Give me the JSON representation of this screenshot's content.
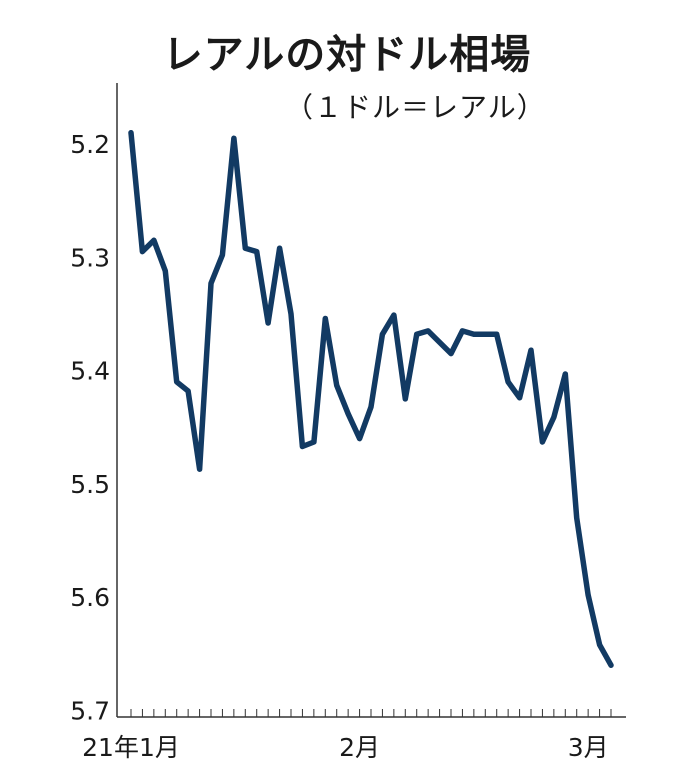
{
  "chart_data": {
    "type": "line",
    "title": "レアルの対ドル相場",
    "subtitle": "（１ドル＝レアル）",
    "xlabel": "",
    "ylabel": "",
    "y_inverted": true,
    "ylim": [
      5.15,
      5.7
    ],
    "yticks": [
      5.2,
      5.3,
      5.4,
      5.5,
      5.6,
      5.7
    ],
    "ytick_labels": [
      "5.2",
      "5.3",
      "5.4",
      "5.5",
      "5.6",
      "5.7"
    ],
    "xtick_labels": [
      {
        "label": "21年1月",
        "index": 0
      },
      {
        "label": "2月",
        "index": 20
      },
      {
        "label": "3月",
        "index": 40
      }
    ],
    "grid": false,
    "line_color": "#123a63",
    "values": [
      5.19,
      5.295,
      5.285,
      5.312,
      5.41,
      5.418,
      5.487,
      5.323,
      5.298,
      5.195,
      5.292,
      5.295,
      5.358,
      5.292,
      5.35,
      5.467,
      5.463,
      5.354,
      5.413,
      5.438,
      5.46,
      5.432,
      5.368,
      5.351,
      5.425,
      5.368,
      5.365,
      5.375,
      5.385,
      5.365,
      5.368,
      5.368,
      5.368,
      5.41,
      5.424,
      5.382,
      5.463,
      5.441,
      5.403,
      5.53,
      5.598,
      5.642,
      5.66
    ]
  }
}
